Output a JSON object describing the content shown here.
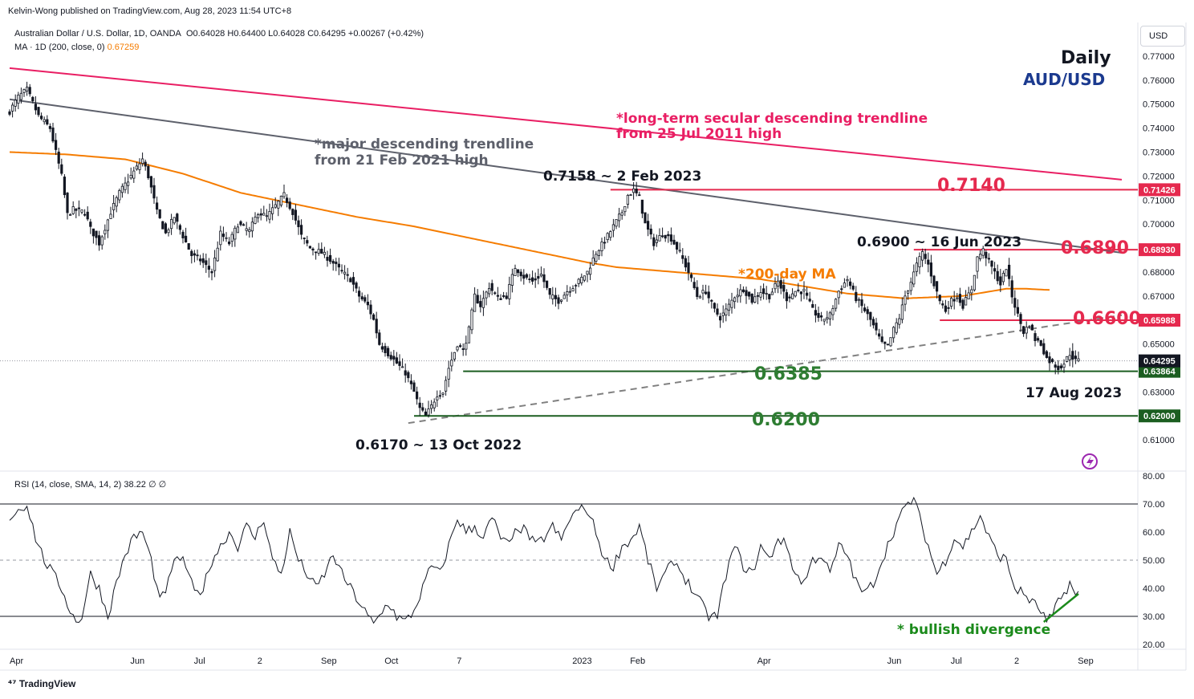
{
  "header": {
    "published": "Kelvin-Wong published on TradingView.com, Aug 28, 2023 11:54 UTC+8",
    "symbol": "Australian Dollar / U.S. Dollar, 1D, OANDA",
    "ohlc": {
      "o": "O0.64028",
      "h": "H0.64400",
      "l": "L0.64028",
      "c": "C0.64295",
      "chg": "+0.00267 (+0.42%)"
    },
    "ma_label": "MA · 1D (200, close, 0)",
    "ma_value": "0.67259",
    "rsi_label": "RSI (14, close, SMA, 14, 2)",
    "rsi_value": "38.22",
    "rsi_extra": "∅ ∅",
    "currency_button": "USD",
    "footer": "TradingView"
  },
  "colors": {
    "up": "#131722",
    "ma": "#f57c00",
    "secular": "#e91e63",
    "major": "#5d606b",
    "resistance": "#e5294e",
    "support": "#1b5e20",
    "support_text": "#2e7d32",
    "title_blue": "#1b3a8f",
    "rsi": "#131722",
    "bullish": "#1b8a1b"
  },
  "chart_data": {
    "type": "candlestick",
    "title": "Daily",
    "subtitle": "AUD/USD",
    "y_range": [
      0.6,
      0.775
    ],
    "y_ticks": [
      "0.77000",
      "0.76000",
      "0.75000",
      "0.74000",
      "0.73000",
      "0.72000",
      "0.71000",
      "0.70000",
      "0.69000",
      "0.68000",
      "0.67000",
      "0.66000",
      "0.65000",
      "0.64000",
      "0.63000",
      "0.62000",
      "0.61000"
    ],
    "x_ticks": [
      {
        "label": "Apr",
        "idx": 0
      },
      {
        "label": "Jun",
        "idx": 44
      },
      {
        "label": "Jul",
        "idx": 66
      },
      {
        "label": "2",
        "idx": 88
      },
      {
        "label": "Sep",
        "idx": 110
      },
      {
        "label": "Oct",
        "idx": 132
      },
      {
        "label": "7",
        "idx": 157
      },
      {
        "label": "2023",
        "idx": 197
      },
      {
        "label": "Feb",
        "idx": 217
      },
      {
        "label": "Apr",
        "idx": 261
      },
      {
        "label": "Jun",
        "idx": 306
      },
      {
        "label": "Jul",
        "idx": 328
      },
      {
        "label": "2",
        "idx": 350
      },
      {
        "label": "Sep",
        "idx": 372
      }
    ],
    "x_count": 385,
    "price_anchors": [
      [
        0,
        0.747
      ],
      [
        3,
        0.753
      ],
      [
        6,
        0.756
      ],
      [
        10,
        0.745
      ],
      [
        14,
        0.74
      ],
      [
        18,
        0.72
      ],
      [
        20,
        0.704
      ],
      [
        22,
        0.706
      ],
      [
        26,
        0.705
      ],
      [
        28,
        0.698
      ],
      [
        31,
        0.692
      ],
      [
        35,
        0.705
      ],
      [
        38,
        0.713
      ],
      [
        42,
        0.72
      ],
      [
        46,
        0.727
      ],
      [
        48,
        0.72
      ],
      [
        51,
        0.705
      ],
      [
        54,
        0.696
      ],
      [
        57,
        0.703
      ],
      [
        60,
        0.695
      ],
      [
        63,
        0.687
      ],
      [
        66,
        0.685
      ],
      [
        70,
        0.68
      ],
      [
        73,
        0.696
      ],
      [
        76,
        0.692
      ],
      [
        79,
        0.7
      ],
      [
        83,
        0.697
      ],
      [
        86,
        0.705
      ],
      [
        89,
        0.703
      ],
      [
        95,
        0.712
      ],
      [
        98,
        0.705
      ],
      [
        101,
        0.695
      ],
      [
        104,
        0.69
      ],
      [
        108,
        0.688
      ],
      [
        111,
        0.685
      ],
      [
        115,
        0.68
      ],
      [
        118,
        0.677
      ],
      [
        121,
        0.67
      ],
      [
        124,
        0.666
      ],
      [
        126,
        0.66
      ],
      [
        128,
        0.65
      ],
      [
        131,
        0.646
      ],
      [
        134,
        0.642
      ],
      [
        137,
        0.638
      ],
      [
        140,
        0.63
      ],
      [
        142,
        0.623
      ],
      [
        144,
        0.62
      ],
      [
        146,
        0.624
      ],
      [
        148,
        0.629
      ],
      [
        150,
        0.63
      ],
      [
        152,
        0.64
      ],
      [
        155,
        0.65
      ],
      [
        157,
        0.647
      ],
      [
        159,
        0.656
      ],
      [
        161,
        0.67
      ],
      [
        163,
        0.666
      ],
      [
        166,
        0.674
      ],
      [
        169,
        0.669
      ],
      [
        172,
        0.67
      ],
      [
        175,
        0.682
      ],
      [
        178,
        0.678
      ],
      [
        181,
        0.676
      ],
      [
        184,
        0.679
      ],
      [
        187,
        0.67
      ],
      [
        190,
        0.668
      ],
      [
        193,
        0.672
      ],
      [
        197,
        0.676
      ],
      [
        200,
        0.68
      ],
      [
        203,
        0.688
      ],
      [
        206,
        0.693
      ],
      [
        209,
        0.699
      ],
      [
        212,
        0.705
      ],
      [
        214,
        0.712
      ],
      [
        216,
        0.714
      ],
      [
        218,
        0.711
      ],
      [
        220,
        0.7
      ],
      [
        223,
        0.692
      ],
      [
        226,
        0.696
      ],
      [
        229,
        0.694
      ],
      [
        232,
        0.688
      ],
      [
        235,
        0.68
      ],
      [
        238,
        0.67
      ],
      [
        241,
        0.672
      ],
      [
        244,
        0.664
      ],
      [
        246,
        0.661
      ],
      [
        248,
        0.664
      ],
      [
        251,
        0.67
      ],
      [
        254,
        0.673
      ],
      [
        257,
        0.668
      ],
      [
        260,
        0.672
      ],
      [
        263,
        0.67
      ],
      [
        266,
        0.676
      ],
      [
        269,
        0.669
      ],
      [
        272,
        0.672
      ],
      [
        275,
        0.672
      ],
      [
        278,
        0.664
      ],
      [
        281,
        0.66
      ],
      [
        284,
        0.662
      ],
      [
        287,
        0.672
      ],
      [
        290,
        0.677
      ],
      [
        293,
        0.669
      ],
      [
        296,
        0.664
      ],
      [
        298,
        0.66
      ],
      [
        300,
        0.655
      ],
      [
        302,
        0.65
      ],
      [
        304,
        0.649
      ],
      [
        306,
        0.656
      ],
      [
        308,
        0.661
      ],
      [
        310,
        0.67
      ],
      [
        312,
        0.676
      ],
      [
        314,
        0.683
      ],
      [
        316,
        0.688
      ],
      [
        318,
        0.683
      ],
      [
        320,
        0.675
      ],
      [
        322,
        0.668
      ],
      [
        324,
        0.664
      ],
      [
        326,
        0.668
      ],
      [
        328,
        0.67
      ],
      [
        330,
        0.666
      ],
      [
        333,
        0.673
      ],
      [
        335,
        0.686
      ],
      [
        337,
        0.689
      ],
      [
        340,
        0.682
      ],
      [
        343,
        0.675
      ],
      [
        345,
        0.682
      ],
      [
        347,
        0.67
      ],
      [
        349,
        0.662
      ],
      [
        351,
        0.655
      ],
      [
        353,
        0.658
      ],
      [
        355,
        0.652
      ],
      [
        357,
        0.65
      ],
      [
        359,
        0.644
      ],
      [
        361,
        0.642
      ],
      [
        363,
        0.64
      ],
      [
        365,
        0.642
      ],
      [
        367,
        0.646
      ],
      [
        369,
        0.643
      ],
      [
        370,
        0.643
      ]
    ],
    "ma_anchors": [
      [
        0,
        0.73
      ],
      [
        20,
        0.729
      ],
      [
        40,
        0.727
      ],
      [
        60,
        0.721
      ],
      [
        80,
        0.713
      ],
      [
        100,
        0.708
      ],
      [
        120,
        0.703
      ],
      [
        140,
        0.699
      ],
      [
        160,
        0.694
      ],
      [
        180,
        0.689
      ],
      [
        200,
        0.684
      ],
      [
        210,
        0.682
      ],
      [
        220,
        0.681
      ],
      [
        230,
        0.68
      ],
      [
        240,
        0.679
      ],
      [
        260,
        0.677
      ],
      [
        275,
        0.674
      ],
      [
        290,
        0.671
      ],
      [
        310,
        0.669
      ],
      [
        330,
        0.67
      ],
      [
        345,
        0.673
      ],
      [
        352,
        0.673
      ],
      [
        360,
        0.6725
      ]
    ],
    "trendlines": [
      {
        "name": "long-term secular descending trendline",
        "color": "#e91e63",
        "from": [
          0,
          0.765
        ],
        "to": [
          385,
          0.7185
        ]
      },
      {
        "name": "major descending trendline",
        "color": "#5d606b",
        "from": [
          0,
          0.752
        ],
        "to": [
          385,
          0.688
        ]
      },
      {
        "name": "ascending support",
        "color": "#808080",
        "dashed": true,
        "from": [
          138,
          0.617
        ],
        "to": [
          385,
          0.662
        ]
      }
    ],
    "levels": [
      {
        "name": "0.7140",
        "price": 0.7143,
        "from_idx": 208,
        "color": "#e5294e",
        "tag": "0.71426"
      },
      {
        "name": "0.6890",
        "price": 0.6893,
        "from_idx": 313,
        "color": "#e5294e",
        "tag": "0.68930"
      },
      {
        "name": "0.6600",
        "price": 0.6599,
        "from_idx": 322,
        "color": "#e5294e",
        "tag": "0.65988"
      },
      {
        "name": "0.6385",
        "price": 0.6386,
        "from_idx": 157,
        "color": "#1b5e20",
        "tag": "0.63864"
      },
      {
        "name": "0.6200",
        "price": 0.62,
        "from_idx": 140,
        "color": "#1b5e20",
        "tag": "0.62000"
      }
    ],
    "last_price": {
      "price": 0.64295,
      "tag": "0.64295"
    },
    "annotations": [
      {
        "text": "*long-term secular descending trendline",
        "color": "#e91e63"
      },
      {
        "text": "from 25 Jul 2011 high",
        "color": "#e91e63"
      },
      {
        "text": "*major descending trendline",
        "color": "#5d606b"
      },
      {
        "text": "from 21 Feb 2021 high",
        "color": "#5d606b"
      },
      {
        "text": "0.7158 ~ 2 Feb 2023",
        "color": "#131722"
      },
      {
        "text": "0.6900 ~ 16 Jun 2023",
        "color": "#131722"
      },
      {
        "text": "*200-day MA",
        "color": "#f57c00"
      },
      {
        "text": "0.6170 ~ 13 Oct 2022",
        "color": "#131722"
      },
      {
        "text": "17 Aug 2023",
        "color": "#131722"
      }
    ],
    "level_labels": [
      {
        "text": "0.7140",
        "color": "#e5294e"
      },
      {
        "text": "0.6890",
        "color": "#e5294e"
      },
      {
        "text": "0.6600",
        "color": "#e5294e"
      },
      {
        "text": "0.6385",
        "color": "#2e7d32"
      },
      {
        "text": "0.6200",
        "color": "#2e7d32"
      }
    ],
    "rsi": {
      "range": [
        20,
        80
      ],
      "ticks": [
        "80.00",
        "70.00",
        "60.00",
        "50.00",
        "40.00",
        "30.00",
        "20.00"
      ],
      "bands": [
        70,
        50,
        30
      ],
      "anchors": [
        [
          0,
          65
        ],
        [
          3,
          68
        ],
        [
          6,
          70
        ],
        [
          9,
          58
        ],
        [
          12,
          50
        ],
        [
          15,
          45
        ],
        [
          18,
          40
        ],
        [
          21,
          32
        ],
        [
          23,
          28
        ],
        [
          25,
          30
        ],
        [
          28,
          45
        ],
        [
          31,
          40
        ],
        [
          34,
          30
        ],
        [
          37,
          42
        ],
        [
          40,
          52
        ],
        [
          43,
          58
        ],
        [
          46,
          60
        ],
        [
          49,
          50
        ],
        [
          52,
          35
        ],
        [
          55,
          42
        ],
        [
          58,
          52
        ],
        [
          61,
          48
        ],
        [
          64,
          38
        ],
        [
          67,
          40
        ],
        [
          70,
          50
        ],
        [
          73,
          55
        ],
        [
          76,
          60
        ],
        [
          79,
          55
        ],
        [
          82,
          62
        ],
        [
          85,
          58
        ],
        [
          88,
          65
        ],
        [
          91,
          50
        ],
        [
          94,
          45
        ],
        [
          97,
          60
        ],
        [
          100,
          50
        ],
        [
          103,
          45
        ],
        [
          106,
          40
        ],
        [
          109,
          45
        ],
        [
          112,
          52
        ],
        [
          115,
          45
        ],
        [
          118,
          40
        ],
        [
          121,
          35
        ],
        [
          124,
          30
        ],
        [
          126,
          27
        ],
        [
          128,
          30
        ],
        [
          131,
          35
        ],
        [
          134,
          30
        ],
        [
          137,
          28
        ],
        [
          140,
          32
        ],
        [
          143,
          40
        ],
        [
          146,
          48
        ],
        [
          149,
          45
        ],
        [
          152,
          55
        ],
        [
          155,
          65
        ],
        [
          158,
          60
        ],
        [
          161,
          62
        ],
        [
          164,
          58
        ],
        [
          167,
          65
        ],
        [
          170,
          58
        ],
        [
          173,
          55
        ],
        [
          176,
          62
        ],
        [
          179,
          60
        ],
        [
          182,
          55
        ],
        [
          185,
          58
        ],
        [
          188,
          62
        ],
        [
          191,
          57
        ],
        [
          194,
          65
        ],
        [
          197,
          68
        ],
        [
          200,
          68
        ],
        [
          203,
          60
        ],
        [
          206,
          50
        ],
        [
          209,
          48
        ],
        [
          212,
          55
        ],
        [
          215,
          57
        ],
        [
          218,
          62
        ],
        [
          221,
          50
        ],
        [
          224,
          40
        ],
        [
          227,
          45
        ],
        [
          230,
          50
        ],
        [
          233,
          45
        ],
        [
          236,
          40
        ],
        [
          239,
          35
        ],
        [
          242,
          30
        ],
        [
          245,
          30
        ],
        [
          248,
          45
        ],
        [
          251,
          55
        ],
        [
          254,
          48
        ],
        [
          257,
          45
        ],
        [
          260,
          55
        ],
        [
          263,
          50
        ],
        [
          266,
          58
        ],
        [
          269,
          55
        ],
        [
          272,
          45
        ],
        [
          275,
          42
        ],
        [
          278,
          50
        ],
        [
          281,
          52
        ],
        [
          284,
          45
        ],
        [
          287,
          55
        ],
        [
          290,
          52
        ],
        [
          293,
          42
        ],
        [
          296,
          38
        ],
        [
          299,
          42
        ],
        [
          302,
          50
        ],
        [
          305,
          58
        ],
        [
          308,
          65
        ],
        [
          311,
          70
        ],
        [
          313,
          72
        ],
        [
          315,
          65
        ],
        [
          318,
          55
        ],
        [
          321,
          45
        ],
        [
          324,
          50
        ],
        [
          327,
          58
        ],
        [
          330,
          55
        ],
        [
          333,
          60
        ],
        [
          336,
          66
        ],
        [
          339,
          58
        ],
        [
          342,
          52
        ],
        [
          345,
          50
        ],
        [
          348,
          40
        ],
        [
          351,
          38
        ],
        [
          354,
          35
        ],
        [
          357,
          32
        ],
        [
          359,
          28
        ],
        [
          361,
          30
        ],
        [
          363,
          35
        ],
        [
          365,
          38
        ],
        [
          367,
          42
        ],
        [
          369,
          37
        ],
        [
          370,
          38
        ]
      ],
      "divergence_label": "* bullish divergence"
    }
  }
}
